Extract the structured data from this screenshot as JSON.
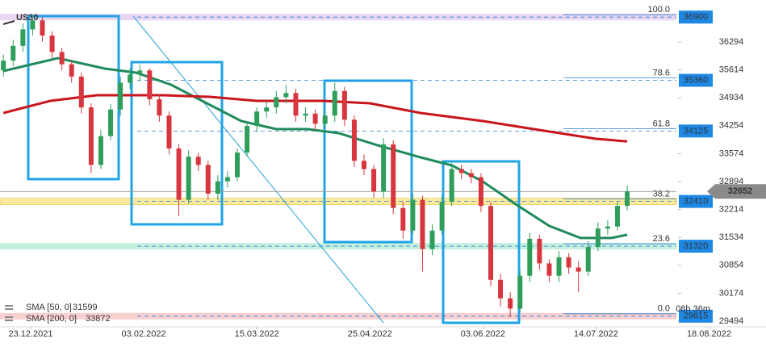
{
  "chart_data": {
    "type": "candlestick",
    "title": "US30",
    "x": [
      -7,
      -4.5,
      -2,
      0.5,
      3,
      5.5,
      8,
      10.5,
      13,
      15.5,
      18,
      20.5,
      23,
      25.5,
      28,
      30.5,
      33,
      35.5,
      38,
      40.5,
      43,
      45.5,
      48,
      50.5,
      53,
      55.5,
      58,
      60.5,
      63,
      65.5,
      68,
      70.5,
      73,
      75.5,
      78,
      80.5,
      83,
      85.5,
      88,
      90.5,
      93,
      95.5,
      98,
      100.5,
      103,
      105.5,
      108,
      110.5,
      113,
      115.5,
      118,
      120.5,
      123,
      125.5,
      128,
      130.5,
      133,
      135.5,
      138,
      140.5,
      143,
      145.5,
      148,
      150.5,
      153
    ],
    "open": [
      35600,
      35840,
      36200,
      36600,
      36820,
      36450,
      36050,
      35750,
      35450,
      34700,
      33300,
      34000,
      34650,
      35300,
      35500,
      35600,
      34900,
      34500,
      33700,
      32450,
      33500,
      33300,
      32600,
      32900,
      33000,
      33600,
      34250,
      34600,
      34700,
      34950,
      35050,
      34500,
      34550,
      34300,
      34500,
      35100,
      34400,
      33400,
      33200,
      32650,
      33800,
      32250,
      31700,
      32450,
      31250,
      31700,
      32400,
      33200,
      33100,
      33000,
      32300,
      30500,
      30050,
      29800,
      30600,
      31500,
      30900,
      30600,
      31050,
      30800,
      30700,
      31300,
      31750,
      31800,
      32300
    ],
    "high": [
      35990,
      36350,
      36750,
      36950,
      36900,
      36550,
      36150,
      35850,
      35550,
      34800,
      34150,
      34780,
      35450,
      35650,
      35750,
      35650,
      35000,
      34600,
      33800,
      33650,
      33600,
      33400,
      33050,
      33150,
      33700,
      34350,
      34700,
      34850,
      35100,
      35250,
      35150,
      34700,
      34650,
      34650,
      35300,
      35200,
      34500,
      33550,
      33300,
      33950,
      33900,
      32400,
      32600,
      32550,
      31850,
      32550,
      33350,
      33300,
      33200,
      33100,
      32400,
      30650,
      30200,
      30750,
      31650,
      31600,
      31000,
      31200,
      31150,
      30950,
      31450,
      31900,
      31950,
      32400,
      32800
    ],
    "low": [
      35450,
      35700,
      36050,
      36450,
      36300,
      35900,
      35600,
      35300,
      34550,
      33100,
      33200,
      33900,
      34500,
      35150,
      35350,
      34750,
      34350,
      33550,
      32050,
      32350,
      33150,
      32450,
      32450,
      32750,
      32900,
      33500,
      34100,
      34450,
      34550,
      34800,
      34350,
      34350,
      34150,
      34200,
      34350,
      34250,
      33250,
      33050,
      32500,
      32500,
      32100,
      31500,
      31600,
      30700,
      31100,
      31600,
      32300,
      32950,
      32850,
      32150,
      30350,
      29850,
      29600,
      29700,
      30450,
      30750,
      30450,
      30450,
      30650,
      30200,
      30600,
      31200,
      31600,
      31700,
      32200
    ],
    "close": [
      35840,
      36200,
      36600,
      36820,
      36450,
      36050,
      35750,
      35450,
      34700,
      33300,
      34000,
      34650,
      35300,
      35500,
      35600,
      34900,
      34500,
      33700,
      32450,
      33500,
      33300,
      32600,
      32900,
      33000,
      33600,
      34250,
      34600,
      34700,
      34950,
      35050,
      34500,
      34550,
      34300,
      34500,
      35100,
      34400,
      33400,
      33200,
      32650,
      33800,
      32250,
      31700,
      32450,
      31250,
      31700,
      32400,
      33200,
      33100,
      33000,
      32300,
      30500,
      30050,
      29800,
      30600,
      31500,
      30900,
      30600,
      31050,
      30800,
      30700,
      31300,
      31750,
      31800,
      32300,
      32652
    ],
    "up_color": "#2f9e5b",
    "down_color": "#d8363e",
    "series": [
      {
        "name": "SMA [50, 0]",
        "color": "#1f8a5c",
        "x": [
          -7,
          7,
          19,
          27,
          36,
          44,
          54,
          63,
          71,
          79,
          89,
          100,
          108,
          116,
          125,
          133,
          141,
          149,
          153
        ],
        "values": [
          35586,
          35900,
          35646,
          35547,
          35253,
          34860,
          34368,
          34172,
          34172,
          34074,
          33779,
          33484,
          33288,
          32894,
          32305,
          31814,
          31519,
          31519,
          31599
        ]
      },
      {
        "name": "SMA [200, 0]",
        "color": "#c8161d",
        "x": [
          -7,
          5,
          17,
          34,
          46,
          58,
          75,
          87,
          100,
          116,
          133,
          145,
          153
        ],
        "values": [
          34565,
          34860,
          34997,
          34997,
          34958,
          34860,
          34860,
          34801,
          34565,
          34368,
          34113,
          33936,
          33872
        ]
      }
    ],
    "levels": [
      {
        "price": 36900,
        "fib": "100.0",
        "band": "#e8d6f2"
      },
      {
        "price": 35360,
        "fib": "78.6"
      },
      {
        "price": 34125,
        "fib": "61.8"
      },
      {
        "price": 32410,
        "fib": "38.2",
        "band": "#fbeaa0"
      },
      {
        "price": 31320,
        "fib": "23.6",
        "band": "#c6f0de"
      },
      {
        "price": 29615,
        "fib": "0.0",
        "band": "#f9d0d0"
      }
    ],
    "level_color": "#1e88e5",
    "ylim": [
      29356,
      37316
    ],
    "yticks": [
      36294,
      35614,
      34934,
      34254,
      33574,
      32894,
      32214,
      31534,
      30854,
      30174,
      29494
    ],
    "xlim": [
      -7.87,
      188.6
    ],
    "xticks": [
      {
        "value": 0,
        "label": "23.12.2021"
      },
      {
        "value": 29,
        "label": "03.02.2022"
      },
      {
        "value": 58,
        "label": "15.03.2022"
      },
      {
        "value": 87,
        "label": "25.04.2022"
      },
      {
        "value": 116,
        "label": "03.06.2022"
      },
      {
        "value": 145,
        "label": "14.07.2022"
      },
      {
        "value": 174,
        "label": "18.08.2022"
      }
    ],
    "countdown": "08h 36m"
  }
}
